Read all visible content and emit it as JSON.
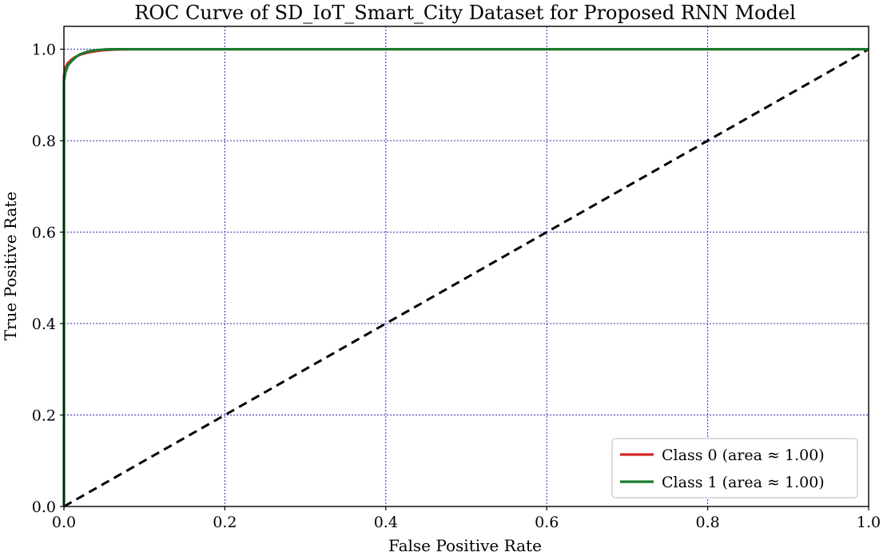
{
  "chart_data": {
    "type": "line",
    "title": "ROC Curve of SD_IoT_Smart_City Dataset for Proposed RNN Model",
    "xlabel": "False Positive Rate",
    "ylabel": "True Positive Rate",
    "xlim": [
      0.0,
      1.0
    ],
    "ylim": [
      0.0,
      1.05
    ],
    "xticks": [
      "0.0",
      "0.2",
      "0.4",
      "0.6",
      "0.8",
      "1.0"
    ],
    "yticks": [
      "0.0",
      "0.2",
      "0.4",
      "0.6",
      "0.8",
      "1.0"
    ],
    "grid": true,
    "legend_position": "lower-right",
    "series": [
      {
        "name": "Class 0 (area ≈ 1.00)",
        "color": "#d62728",
        "x": [
          0.0,
          0.0,
          0.002,
          0.005,
          0.01,
          0.015,
          0.02,
          0.03,
          0.04,
          0.05,
          0.06,
          0.07,
          0.08,
          0.1,
          0.3,
          0.6,
          1.0
        ],
        "y": [
          0.0,
          0.94,
          0.96,
          0.97,
          0.978,
          0.984,
          0.988,
          0.993,
          0.996,
          0.998,
          0.999,
          0.9995,
          1.0,
          1.0,
          1.0,
          1.0,
          1.0
        ]
      },
      {
        "name": "Class 1 (area ≈ 1.00)",
        "color": "#1b7a2e",
        "x": [
          0.0,
          0.0,
          0.002,
          0.005,
          0.01,
          0.015,
          0.02,
          0.03,
          0.04,
          0.05,
          0.06,
          0.07,
          0.1,
          0.3,
          0.6,
          1.0
        ],
        "y": [
          0.0,
          0.93,
          0.95,
          0.965,
          0.975,
          0.983,
          0.989,
          0.995,
          0.998,
          0.9995,
          1.0,
          1.0,
          1.0,
          1.0,
          1.0,
          1.0
        ]
      }
    ],
    "reference_line": {
      "x": [
        0.0,
        1.0
      ],
      "y": [
        0.0,
        1.0
      ],
      "color": "#000000",
      "style": "dashed"
    }
  }
}
